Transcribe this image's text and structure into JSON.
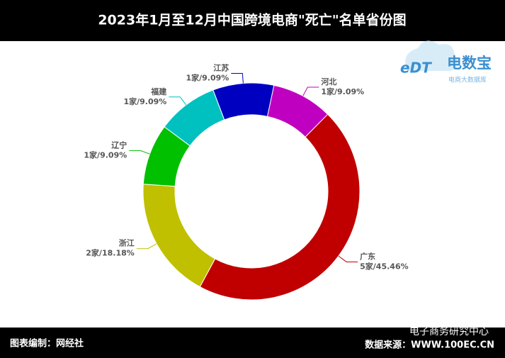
{
  "chart_data": {
    "type": "donut",
    "title": "2023年1月至12月中国跨境电商\"死亡\"名单省份图",
    "categories": [
      "河北",
      "广东",
      "浙江",
      "辽宁",
      "福建",
      "江苏"
    ],
    "values": [
      9.09,
      45.46,
      18.18,
      9.09,
      9.09,
      9.09
    ],
    "value_labels": [
      "1家/9.09%",
      "5家/45.46%",
      "2家/18.18%",
      "1家/9.09%",
      "1家/9.09%",
      "1家/9.09%"
    ],
    "colors": [
      "#c000c0",
      "#c00000",
      "#c0c000",
      "#00c000",
      "#00c0c0",
      "#0000c0"
    ],
    "footer_left": "图表编制：网经社",
    "footer_right": "数据来源：WWW.100EC.CN",
    "watermark": "电子商务研究中心",
    "logo": {
      "mark": "eDT",
      "name": "电数宝",
      "tagline": "电商大数据库"
    }
  }
}
